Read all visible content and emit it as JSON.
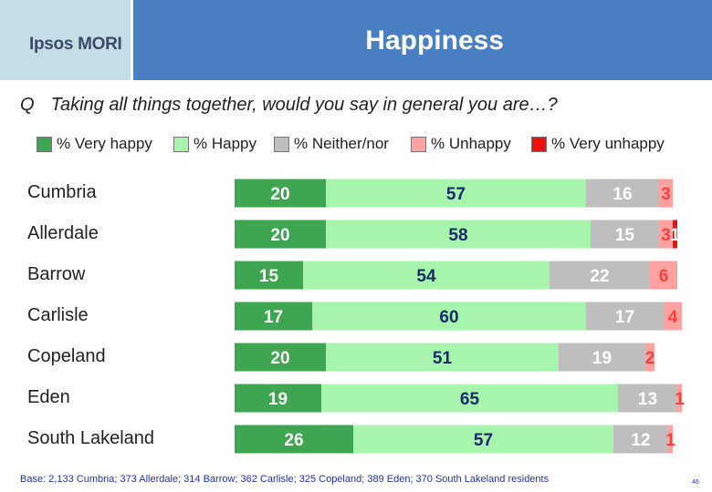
{
  "header": {
    "logo": "Ipsos MORI",
    "title": "Happiness"
  },
  "question": {
    "prefix": "Q",
    "text": "Taking all things together, would you say in general you are…?"
  },
  "colors": {
    "very_happy": "#3ea650",
    "happy": "#a7f5ad",
    "neither": "#bebebe",
    "unhappy": "#ffa1a1",
    "very_unhappy": "#f01010",
    "header_band": "#4a7ec2",
    "logo_box": "#c5dde6"
  },
  "chart_data": {
    "type": "bar",
    "orientation": "horizontal",
    "stacked": true,
    "categories": [
      "Cumbria",
      "Allerdale",
      "Barrow",
      "Carlisle",
      "Copeland",
      "Eden",
      "South Lakeland"
    ],
    "series": [
      {
        "name": "% Very happy",
        "values": [
          20,
          20,
          15,
          17,
          20,
          19,
          26
        ]
      },
      {
        "name": "% Happy",
        "values": [
          57,
          58,
          54,
          60,
          51,
          65,
          57
        ]
      },
      {
        "name": "% Neither/nor",
        "values": [
          16,
          15,
          22,
          17,
          19,
          13,
          12
        ]
      },
      {
        "name": "% Unhappy",
        "values": [
          3,
          3,
          6,
          4,
          2,
          1,
          1
        ]
      },
      {
        "name": "% Very unhappy",
        "values": [
          0,
          1,
          0,
          0,
          0,
          0,
          0
        ]
      }
    ],
    "xlim": [
      0,
      100
    ],
    "legend_position": "top",
    "grid": false
  },
  "footnote": "Base: 2,133 Cumbria; 373 Allerdale; 314 Barrow; 362 Carlisle; 325 Copeland; 389 Eden; 370 South Lakeland residents",
  "page_number": "46"
}
